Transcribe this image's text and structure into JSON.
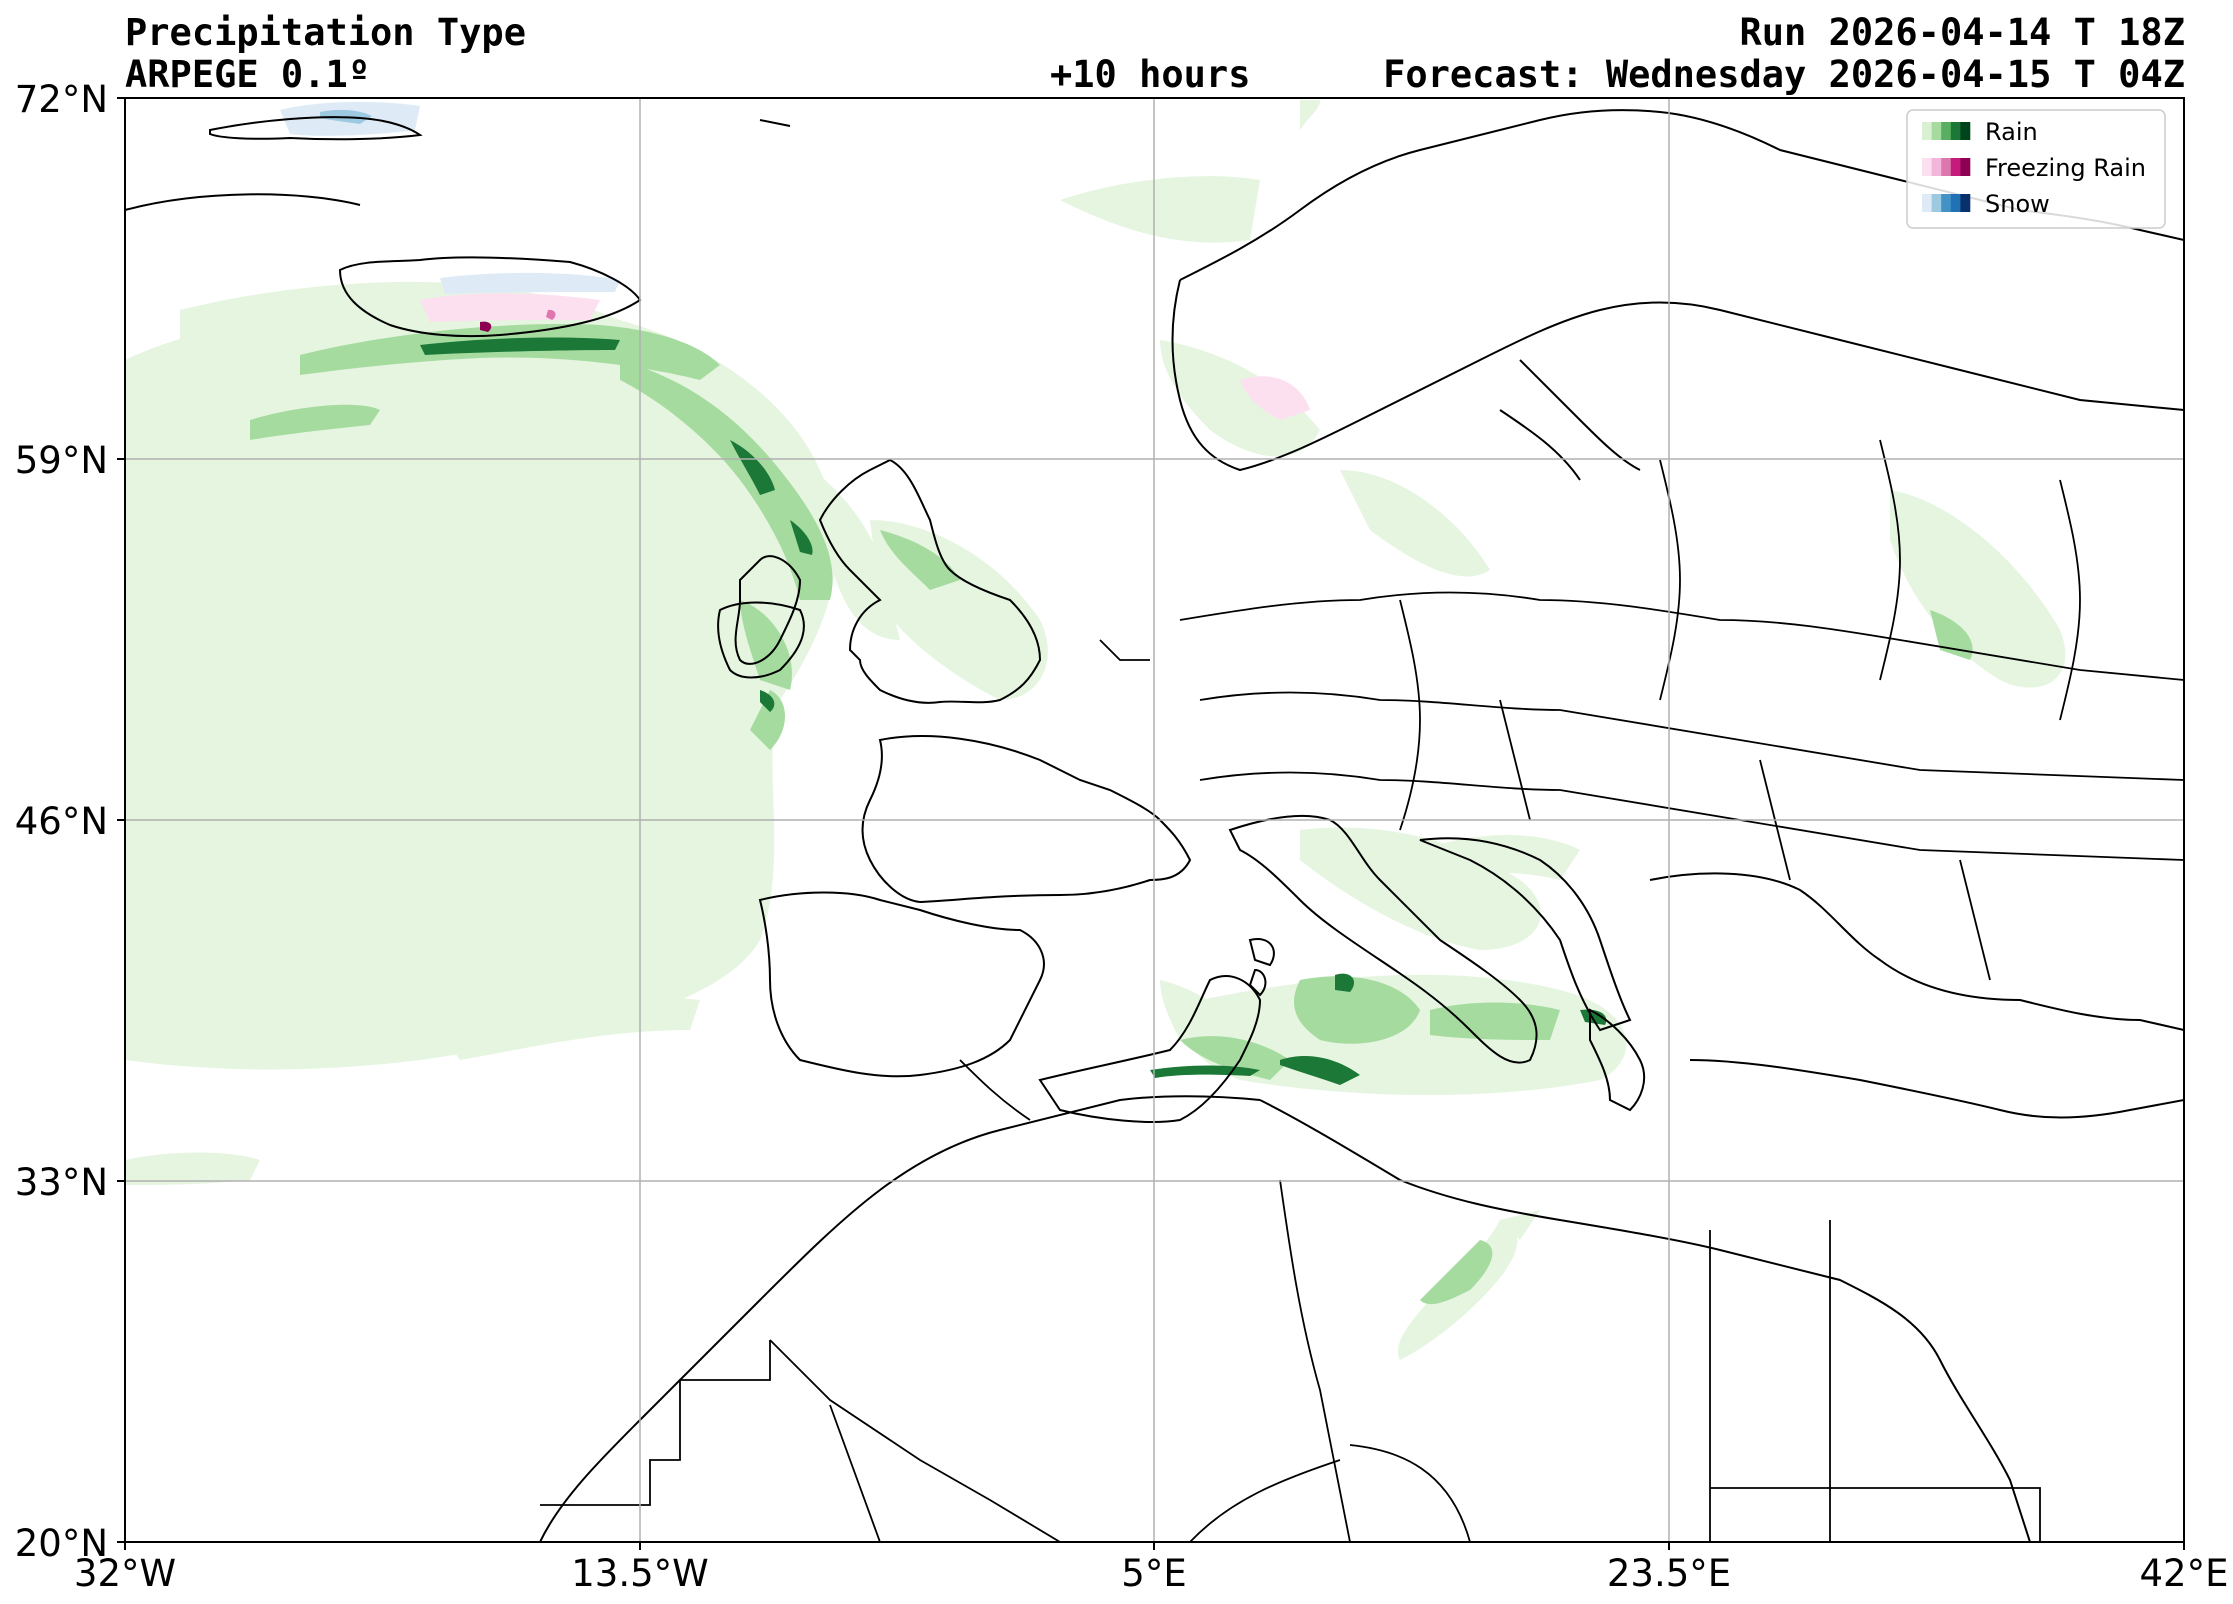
{
  "header": {
    "title": "Precipitation Type",
    "model": "ARPEGE 0.1º",
    "lead": "+10 hours",
    "run": "Run 2026-04-14 T 18Z",
    "forecast": "Forecast: Wednesday 2026-04-15 T 04Z"
  },
  "axes": {
    "lat_ticks": [
      "72°N",
      "59°N",
      "46°N",
      "33°N",
      "20°N"
    ],
    "lon_ticks": [
      "32°W",
      "13.5°W",
      "5°E",
      "23.5°E",
      "42°E"
    ],
    "lat_range": [
      20,
      72
    ],
    "lon_range": [
      -32,
      42
    ],
    "grid": true
  },
  "legend": {
    "placement": "top-right",
    "items": [
      {
        "label": "Rain",
        "colors": [
          "#d9f0d3",
          "#a6dba0",
          "#5aae61",
          "#1b7837",
          "#00441b"
        ]
      },
      {
        "label": "Freezing Rain",
        "colors": [
          "#fde0ef",
          "#f1b6da",
          "#de77ae",
          "#c51b7d",
          "#8e0152"
        ]
      },
      {
        "label": "Snow",
        "colors": [
          "#deebf7",
          "#9ecae1",
          "#4292c6",
          "#2171b5",
          "#08306b"
        ]
      }
    ]
  }
}
